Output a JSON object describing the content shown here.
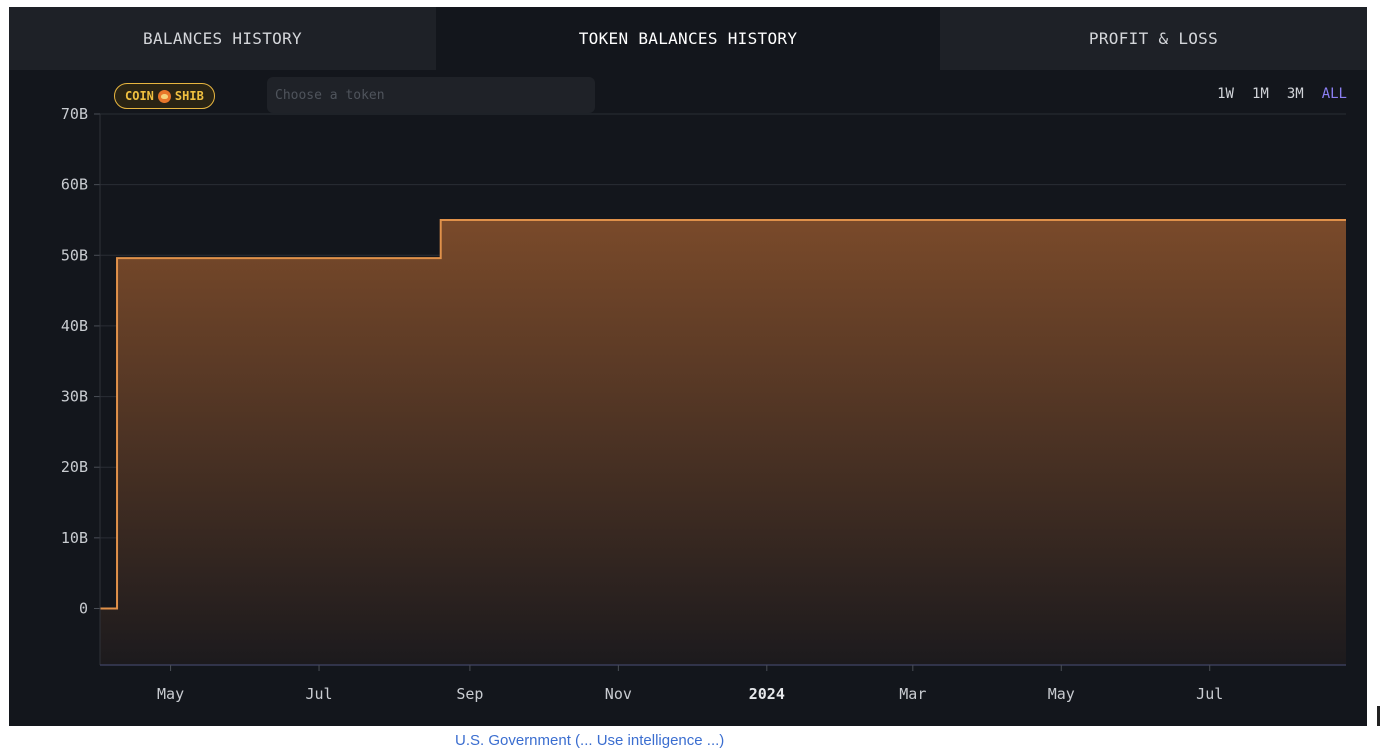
{
  "tabs": [
    {
      "label": "BALANCES HISTORY",
      "active": false
    },
    {
      "label": "TOKEN BALANCES HISTORY",
      "active": true
    },
    {
      "label": "PROFIT & LOSS",
      "active": false
    }
  ],
  "token_selector": {
    "selected_token": {
      "coin_label": "COIN",
      "symbol": "SHIB",
      "icon": "shib-icon"
    },
    "search_placeholder": "Choose a token"
  },
  "range_options": [
    {
      "label": "1W",
      "active": false
    },
    {
      "label": "1M",
      "active": false
    },
    {
      "label": "3M",
      "active": false
    },
    {
      "label": "ALL",
      "active": true
    }
  ],
  "colors": {
    "line": "#e0914a",
    "fill_top": "#7a4a2a",
    "fill_bottom": "#1c1a1d",
    "active_range": "#8b7ff2",
    "token_badge": "#e8b640"
  },
  "chart_data": {
    "type": "area",
    "step": true,
    "title": "",
    "xlabel": "",
    "ylabel": "",
    "y_unit": "B",
    "ylim": [
      -8,
      70
    ],
    "yticks": [
      {
        "value": 0,
        "label": "0"
      },
      {
        "value": 10,
        "label": "10B"
      },
      {
        "value": 20,
        "label": "20B"
      },
      {
        "value": 30,
        "label": "30B"
      },
      {
        "value": 40,
        "label": "40B"
      },
      {
        "value": 50,
        "label": "50B"
      },
      {
        "value": 60,
        "label": "60B"
      },
      {
        "value": 70,
        "label": "70B"
      }
    ],
    "xlim": [
      "2023-04-02",
      "2024-08-26"
    ],
    "xticks": [
      {
        "date": "2023-05-01",
        "label": "May",
        "bold": false
      },
      {
        "date": "2023-07-01",
        "label": "Jul",
        "bold": false
      },
      {
        "date": "2023-09-01",
        "label": "Sep",
        "bold": false
      },
      {
        "date": "2023-11-01",
        "label": "Nov",
        "bold": false
      },
      {
        "date": "2024-01-01",
        "label": "2024",
        "bold": true
      },
      {
        "date": "2024-03-01",
        "label": "Mar",
        "bold": false
      },
      {
        "date": "2024-05-01",
        "label": "May",
        "bold": false
      },
      {
        "date": "2024-07-01",
        "label": "Jul",
        "bold": false
      }
    ],
    "series": [
      {
        "points": [
          {
            "date": "2023-04-02",
            "value": 0
          },
          {
            "date": "2023-04-09",
            "value": 49.6
          },
          {
            "date": "2023-08-20",
            "value": 55
          },
          {
            "date": "2024-08-26",
            "value": 55
          }
        ]
      }
    ]
  },
  "footer_text": "U.S. Government (... Use intelligence ...)"
}
